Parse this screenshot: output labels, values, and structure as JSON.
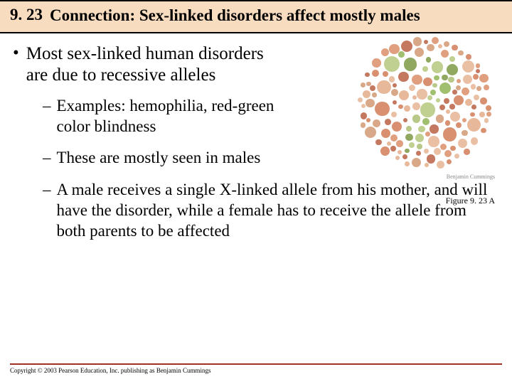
{
  "title": {
    "number": "9. 23",
    "text": "Connection: Sex-linked disorders affect mostly males",
    "bg_color": "#f7dcc0"
  },
  "main_bullet": "Most sex-linked human disorders are due to recessive alleles",
  "sub_bullets": [
    "Examples: hemophilia, red-green color blindness",
    "These are mostly seen in males",
    "A male receives a single X-linked allele from his mother, and will have the disorder, while a female has to receive the allele from both parents to be affected"
  ],
  "figure": {
    "caption": "Figure 9. 23 A",
    "brand": "Benjamin Cummings",
    "type": "ishihara-colorblind-test",
    "palette": {
      "bg_dots": [
        "#e8b89a",
        "#d89070",
        "#e0a080",
        "#c47860",
        "#eac0a5",
        "#d9a888"
      ],
      "fg_dots": [
        "#a0c070",
        "#b8c888",
        "#90a860",
        "#c0d090"
      ]
    }
  },
  "copyright": "Copyright © 2003 Pearson Education, Inc. publishing as Benjamin Cummings",
  "colors": {
    "footer_line": "#a03020"
  }
}
